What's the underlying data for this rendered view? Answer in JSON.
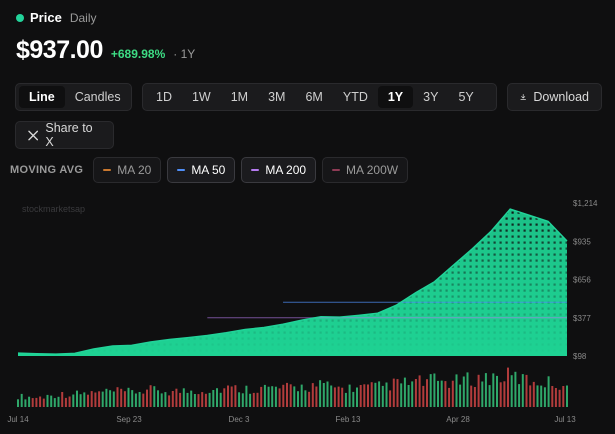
{
  "header": {
    "title": "Price",
    "interval": "Daily"
  },
  "summary": {
    "price": "$937.00",
    "change": "+689.98%",
    "separator": "·",
    "period": "1Y"
  },
  "chart_type_tabs": [
    "Line",
    "Candles"
  ],
  "active_chart_type": "Line",
  "range_tabs": [
    "1D",
    "1W",
    "1M",
    "3M",
    "6M",
    "YTD",
    "1Y",
    "3Y",
    "5Y"
  ],
  "active_range": "1Y",
  "download_label": "Download",
  "share_label": "Share to X",
  "moving_avg": {
    "title": "MOVING AVG",
    "options": [
      {
        "label": "MA 20",
        "color": "#c9782f",
        "active": false
      },
      {
        "label": "MA 50",
        "color": "#4f8ef7",
        "active": true
      },
      {
        "label": "MA 200",
        "color": "#b57bf0",
        "active": true
      },
      {
        "label": "MA 200W",
        "color": "#8e3b55",
        "active": false
      }
    ]
  },
  "watermark": "stockmarketsap",
  "colors": {
    "accent": "#22d39a",
    "up": "#2fa86a",
    "down": "#b23c3c",
    "ma50": "#4f8ef7",
    "ma200": "#b57bf0"
  },
  "chart_data": {
    "type": "area",
    "y_ticks": [
      "$1,214",
      "$935",
      "$656",
      "$377",
      "$98"
    ],
    "x_ticks": [
      "Jul 14",
      "Sep 23",
      "Dec 3",
      "Feb 13",
      "Apr 28",
      "Jul 13"
    ],
    "ylim": [
      98,
      1214
    ],
    "x": [
      "Jul 14",
      "Jul 28",
      "Aug 11",
      "Aug 25",
      "Sep 8",
      "Sep 23",
      "Oct 7",
      "Oct 21",
      "Nov 4",
      "Nov 18",
      "Dec 3",
      "Dec 17",
      "Dec 31",
      "Jan 14",
      "Jan 28",
      "Feb 13",
      "Feb 27",
      "Mar 13",
      "Mar 27",
      "Apr 10",
      "Apr 28",
      "May 9",
      "May 20",
      "May 31",
      "Jun 10",
      "Jun 17",
      "Jun 24",
      "Jul 1",
      "Jul 8",
      "Jul 13"
    ],
    "series": [
      {
        "values": [
          119,
          115,
          112,
          118,
          150,
          172,
          176,
          200,
          218,
          232,
          248,
          268,
          292,
          306,
          330,
          360,
          385,
          382,
          395,
          410,
          470,
          560,
          640,
          760,
          880,
          1010,
          1170,
          1125,
          1080,
          937
        ]
      }
    ],
    "ma50_level": 490,
    "ma200_level": 377,
    "volume_relative": [
      0.35,
      0.3,
      0.4,
      0.42,
      0.45,
      0.5,
      0.48,
      0.55,
      0.5,
      0.52,
      0.55,
      0.6,
      0.58,
      0.62,
      0.6,
      0.65,
      0.7,
      0.6,
      0.62,
      0.65,
      0.75,
      0.8,
      0.85,
      0.8,
      0.9,
      0.95,
      1.0,
      0.85,
      0.8,
      0.7
    ]
  }
}
